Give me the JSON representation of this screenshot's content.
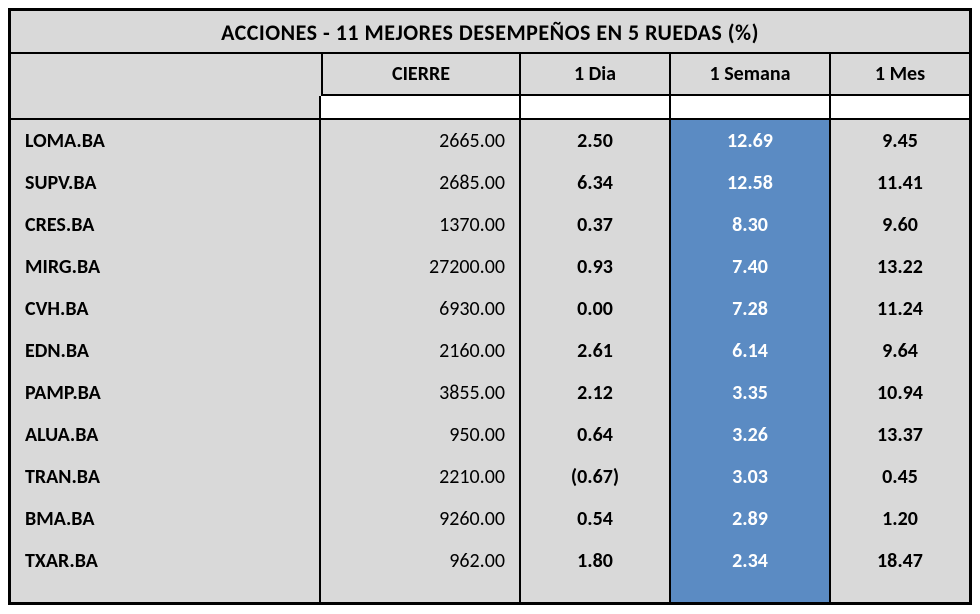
{
  "table": {
    "title": "ACCIONES   - 11  MEJORES DESEMPEÑOS EN 5 RUEDAS (%)",
    "columns": [
      "CIERRE",
      "1 Dia",
      "1 Semana",
      "1 Mes"
    ],
    "highlight_column": "1 Semana",
    "highlight_bg": "#5b8bc3",
    "highlight_fg": "#ffffff",
    "background_color": "#d9d9d9",
    "border_color": "#000000",
    "title_fontsize": 22,
    "header_fontsize": 20,
    "body_fontsize": 20,
    "rows": [
      {
        "ticker": "LOMA.BA",
        "cierre": "2665.00",
        "dia": "2.50",
        "semana": "12.69",
        "mes": "9.45"
      },
      {
        "ticker": "SUPV.BA",
        "cierre": "2685.00",
        "dia": "6.34",
        "semana": "12.58",
        "mes": "11.41"
      },
      {
        "ticker": "CRES.BA",
        "cierre": "1370.00",
        "dia": "0.37",
        "semana": "8.30",
        "mes": "9.60"
      },
      {
        "ticker": "MIRG.BA",
        "cierre": "27200.00",
        "dia": "0.93",
        "semana": "7.40",
        "mes": "13.22"
      },
      {
        "ticker": "CVH.BA",
        "cierre": "6930.00",
        "dia": "0.00",
        "semana": "7.28",
        "mes": "11.24"
      },
      {
        "ticker": "EDN.BA",
        "cierre": "2160.00",
        "dia": "2.61",
        "semana": "6.14",
        "mes": "9.64"
      },
      {
        "ticker": "PAMP.BA",
        "cierre": "3855.00",
        "dia": "2.12",
        "semana": "3.35",
        "mes": "10.94"
      },
      {
        "ticker": "ALUA.BA",
        "cierre": "950.00",
        "dia": "0.64",
        "semana": "3.26",
        "mes": "13.37"
      },
      {
        "ticker": "TRAN.BA",
        "cierre": "2210.00",
        "dia": "(0.67)",
        "semana": "3.03",
        "mes": "0.45"
      },
      {
        "ticker": "BMA.BA",
        "cierre": "9260.00",
        "dia": "0.54",
        "semana": "2.89",
        "mes": "1.20"
      },
      {
        "ticker": "TXAR.BA",
        "cierre": "962.00",
        "dia": "1.80",
        "semana": "2.34",
        "mes": "18.47"
      }
    ]
  }
}
